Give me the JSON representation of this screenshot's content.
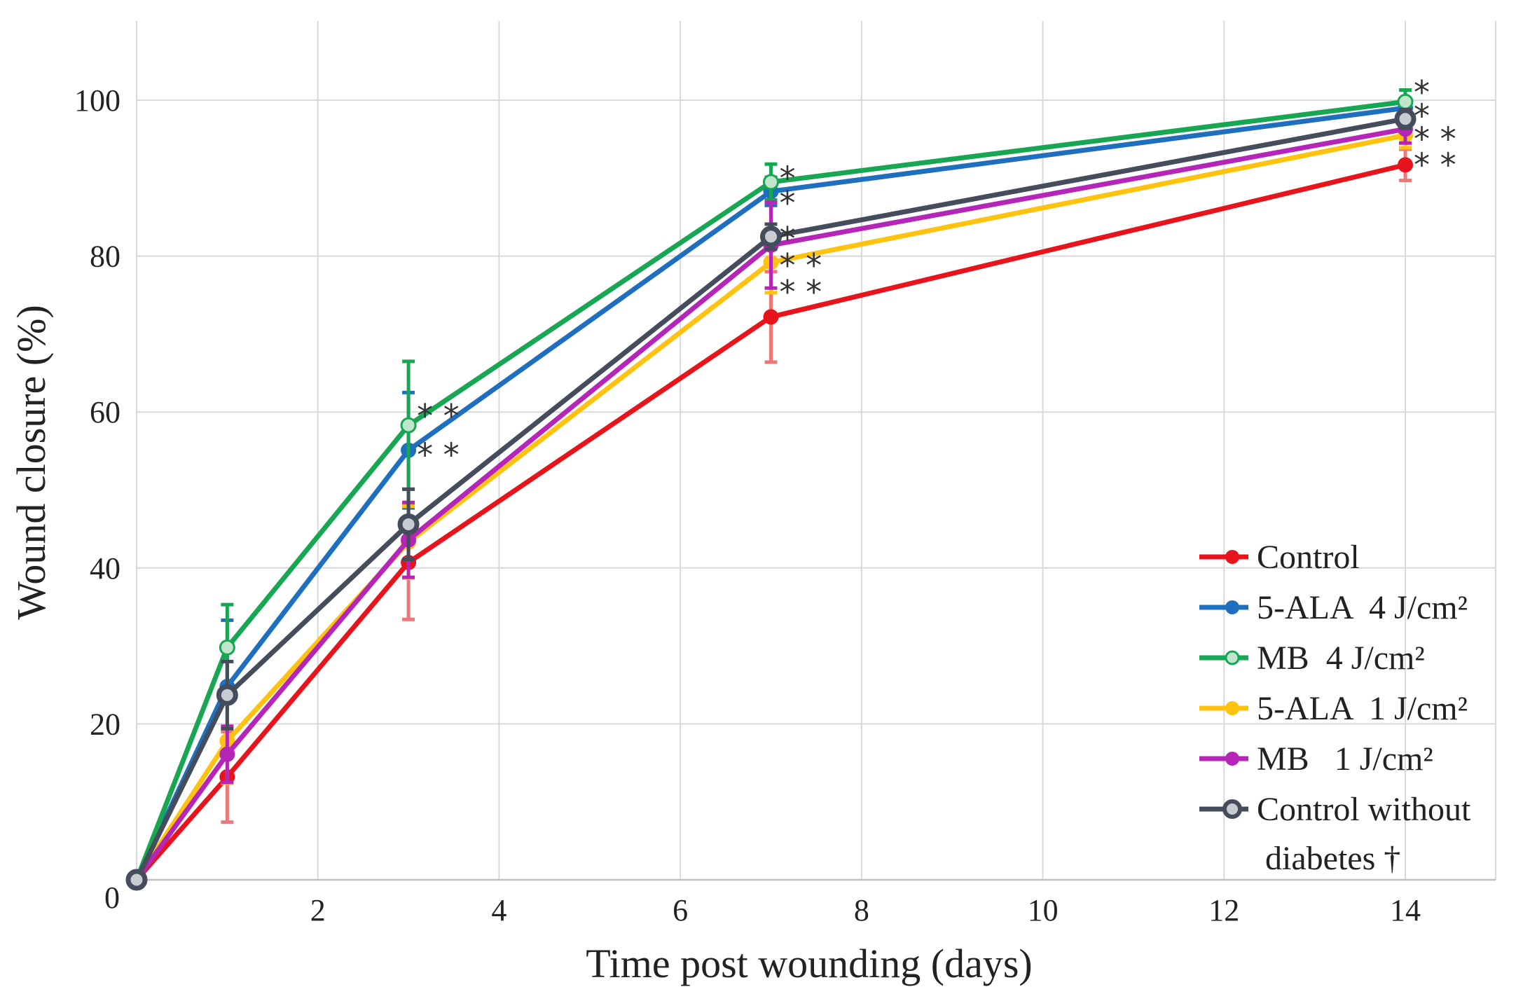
{
  "chart_data": {
    "type": "line",
    "xlabel": "Time post wounding (days)",
    "ylabel": "Wound closure (%)",
    "xlim": [
      0,
      15
    ],
    "ylim": [
      0,
      110
    ],
    "xticks": [
      2,
      4,
      6,
      8,
      10,
      12,
      14
    ],
    "xtick_labels": [
      "2",
      "4",
      "6",
      "8",
      "10",
      "12",
      "14"
    ],
    "yticks": [
      20,
      40,
      60,
      80,
      100
    ],
    "ytick_labels": [
      "20",
      "40",
      "60",
      "80",
      "100"
    ],
    "origin_label": "0",
    "grid": true,
    "legend_position": "bottom-right",
    "x": [
      0,
      1,
      3,
      7,
      14
    ],
    "series": [
      {
        "name": "Control",
        "legend": [
          "Control"
        ],
        "color": "#e8141b",
        "err_color": "#f07777",
        "marker": "filled",
        "values": [
          0,
          13.2,
          40.7,
          72.2,
          91.7
        ],
        "errors": [
          0,
          5.8,
          7.3,
          5.8,
          2.0
        ]
      },
      {
        "name": "5-ALA 4 J/cm²",
        "legend": [
          "5-ALA  4 J/cm²"
        ],
        "color": "#1f6fbf",
        "err_color": "#1f6fbf",
        "marker": "filled",
        "values": [
          0,
          24.8,
          55.1,
          88.3,
          99.0
        ],
        "errors": [
          0,
          8.5,
          7.4,
          1.8,
          1.2
        ]
      },
      {
        "name": "MB 4 J/cm²",
        "legend": [
          "MB  4 J/cm²"
        ],
        "color": "#17a652",
        "err_color": "#17a652",
        "marker": "open",
        "values": [
          0,
          29.8,
          58.3,
          89.5,
          99.8
        ],
        "errors": [
          0,
          5.5,
          8.2,
          2.3,
          1.5
        ]
      },
      {
        "name": "5-ALA 1 J/cm²",
        "legend": [
          "5-ALA  1 J/cm²"
        ],
        "color": "#ffc20e",
        "err_color": "#ffc20e",
        "marker": "filled",
        "values": [
          0,
          17.8,
          43.3,
          79.2,
          95.5
        ],
        "errors": [
          0,
          5.4,
          4.6,
          3.9,
          1.6
        ]
      },
      {
        "name": "MB 1 J/cm²",
        "legend": [
          "MB   1 J/cm²"
        ],
        "color": "#b526b8",
        "err_color": "#b526b8",
        "marker": "filled",
        "values": [
          0,
          16.1,
          43.6,
          81.4,
          96.3
        ],
        "errors": [
          0,
          3.6,
          4.8,
          5.5,
          1.8
        ]
      },
      {
        "name": "Control without diabetes †",
        "legend": [
          "Control without",
          " diabetes †"
        ],
        "color": "#454d5c",
        "err_color": "#454d5c",
        "marker": "ring",
        "values": [
          0,
          23.7,
          45.6,
          82.5,
          97.6
        ],
        "errors": [
          0,
          4.3,
          4.5,
          1.6,
          1.2
        ]
      }
    ],
    "annotations": [
      {
        "x": 3,
        "y": 59.5,
        "text": "* *",
        "dx": 0.0
      },
      {
        "x": 3,
        "y": 54.5,
        "text": "* *",
        "dx": 0.0
      },
      {
        "x": 7,
        "y": 90.0,
        "text": "*",
        "dx": 0.0
      },
      {
        "x": 7,
        "y": 86.8,
        "text": "*",
        "dx": 0.0
      },
      {
        "x": 7,
        "y": 82.2,
        "text": "*",
        "dx": 0.0
      },
      {
        "x": 7,
        "y": 78.8,
        "text": "* *",
        "dx": 0.0
      },
      {
        "x": 7,
        "y": 75.4,
        "text": "* *",
        "dx": 0.0
      },
      {
        "x": 14,
        "y": 101.0,
        "text": "*",
        "dx": 0.0
      },
      {
        "x": 14,
        "y": 98.0,
        "text": "*",
        "dx": 0.0
      },
      {
        "x": 14,
        "y": 95.0,
        "text": "* *",
        "dx": 0.0
      },
      {
        "x": 14,
        "y": 91.7,
        "text": "* *",
        "dx": 0.0
      }
    ]
  }
}
